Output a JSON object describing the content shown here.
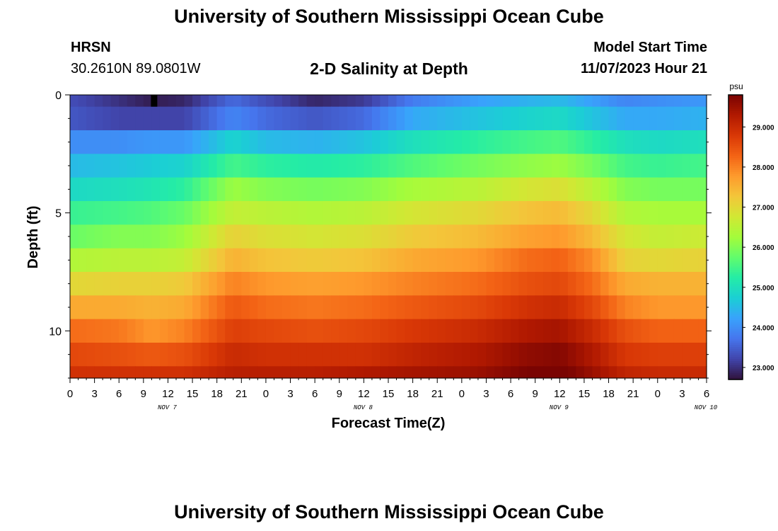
{
  "page": {
    "title_top": "University of Southern Mississippi Ocean Cube",
    "title_bottom": "University of Southern Mississippi Ocean Cube",
    "station": "HRSN",
    "coordinates": "30.2610N  89.0801W",
    "subtitle": "2-D Salinity at Depth",
    "model_label": "Model Start Time",
    "model_time": "11/07/2023 Hour 21"
  },
  "chart_data": {
    "type": "heatmap",
    "title": "2-D Salinity at Depth",
    "xlabel": "Forecast Time(Z)",
    "ylabel": "Depth (ft)",
    "colorbar_label": "psu",
    "x_ticks": [
      "0",
      "3",
      "6",
      "9",
      "12",
      "15",
      "18",
      "21",
      "0",
      "3",
      "6",
      "9",
      "12",
      "15",
      "18",
      "21",
      "0",
      "3",
      "6",
      "9",
      "12",
      "15",
      "18",
      "21",
      "0",
      "3",
      "6"
    ],
    "x_range_hours": [
      0,
      78
    ],
    "day_labels": [
      {
        "label": "NOV 7",
        "hour": 12
      },
      {
        "label": "NOV 8",
        "hour": 36
      },
      {
        "label": "NOV 9",
        "hour": 60
      },
      {
        "label": "NOV 10",
        "hour": 78
      }
    ],
    "y_ticks": [
      0,
      5,
      10
    ],
    "y_range_ft": [
      0,
      12
    ],
    "depth_layer_bounds_ft": [
      0,
      0.5,
      1.5,
      2.5,
      3.5,
      4.5,
      5.5,
      6.5,
      7.5,
      8.5,
      9.5,
      10.5,
      11.5,
      12
    ],
    "time_key_hours": [
      0,
      6,
      10,
      14,
      20,
      24,
      30,
      36,
      42,
      50,
      56,
      60,
      64,
      68,
      72,
      78
    ],
    "salinity_psu": [
      [
        23.3,
        23.0,
        22.8,
        22.9,
        23.6,
        23.3,
        22.9,
        23.1,
        23.8,
        24.2,
        24.4,
        24.5,
        24.2,
        23.9,
        24.0,
        24.1
      ],
      [
        23.4,
        23.2,
        23.2,
        23.2,
        23.9,
        23.6,
        23.4,
        23.6,
        24.3,
        24.6,
        24.8,
        24.9,
        24.6,
        24.3,
        24.3,
        24.4
      ],
      [
        24.0,
        24.0,
        24.1,
        24.1,
        24.8,
        24.5,
        24.4,
        24.6,
        25.0,
        25.3,
        25.5,
        25.6,
        25.3,
        25.0,
        24.9,
        25.0
      ],
      [
        24.5,
        24.6,
        24.7,
        24.8,
        25.5,
        25.3,
        25.2,
        25.3,
        25.6,
        25.9,
        26.1,
        26.2,
        25.9,
        25.5,
        25.4,
        25.5
      ],
      [
        24.9,
        25.0,
        25.1,
        25.3,
        26.2,
        26.0,
        25.9,
        26.0,
        26.3,
        26.5,
        26.8,
        26.9,
        26.5,
        26.0,
        25.9,
        25.9
      ],
      [
        25.4,
        25.5,
        25.6,
        25.8,
        26.6,
        26.5,
        26.4,
        26.5,
        26.8,
        27.0,
        27.3,
        27.4,
        27.0,
        26.4,
        26.3,
        26.3
      ],
      [
        25.8,
        26.0,
        26.0,
        26.2,
        27.1,
        26.9,
        26.8,
        26.9,
        27.2,
        27.4,
        27.7,
        27.8,
        27.4,
        26.8,
        26.6,
        26.7
      ],
      [
        26.4,
        26.5,
        26.5,
        26.6,
        27.5,
        27.3,
        27.2,
        27.3,
        27.6,
        27.8,
        28.2,
        28.3,
        27.9,
        27.1,
        27.0,
        27.1
      ],
      [
        27.0,
        27.1,
        27.1,
        27.2,
        28.0,
        27.8,
        27.7,
        27.8,
        28.0,
        28.2,
        28.5,
        28.6,
        28.2,
        27.6,
        27.5,
        27.5
      ],
      [
        27.6,
        27.6,
        27.5,
        27.6,
        28.4,
        28.2,
        28.1,
        28.2,
        28.4,
        28.6,
        28.9,
        29.0,
        28.6,
        28.0,
        27.8,
        27.8
      ],
      [
        28.2,
        28.1,
        27.8,
        28.0,
        28.7,
        28.6,
        28.5,
        28.6,
        28.8,
        29.0,
        29.3,
        29.4,
        29.0,
        28.5,
        28.3,
        28.3
      ],
      [
        28.6,
        28.5,
        28.4,
        28.5,
        29.0,
        28.9,
        28.9,
        28.9,
        29.1,
        29.3,
        29.6,
        29.7,
        29.3,
        28.8,
        28.7,
        28.7
      ],
      [
        28.9,
        28.9,
        28.9,
        28.9,
        29.2,
        29.2,
        29.2,
        29.3,
        29.4,
        29.5,
        29.8,
        29.9,
        29.5,
        29.1,
        29.0,
        29.0
      ]
    ],
    "colorbar": {
      "range": [
        22.7,
        29.8
      ],
      "ticks": [
        "23.000",
        "24.000",
        "25.000",
        "26.000",
        "27.000",
        "28.000",
        "29.000"
      ],
      "colors": [
        "#30123b",
        "#4145ab",
        "#4675ed",
        "#39a2fc",
        "#1bcfd4",
        "#24eca6",
        "#61fc6c",
        "#a4fc3b",
        "#d1e834",
        "#f3c63a",
        "#fe9b2d",
        "#f36315",
        "#d93806",
        "#b11901",
        "#7a0402"
      ]
    }
  }
}
